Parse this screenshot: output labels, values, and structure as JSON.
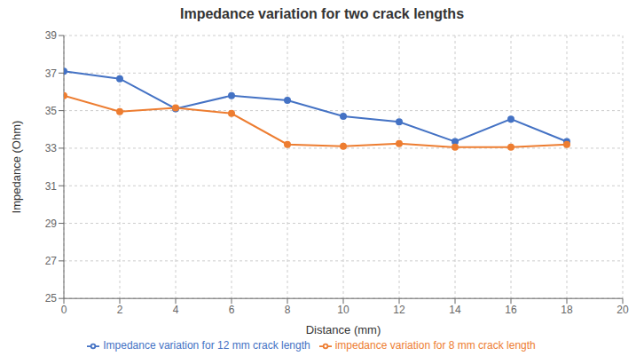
{
  "chart_data": {
    "type": "line",
    "title": "Impedance variation for two crack lengths",
    "xlabel": "Distance (mm)",
    "ylabel": "Impedance (Ohm)",
    "x": [
      0,
      2,
      4,
      6,
      8,
      10,
      12,
      14,
      16,
      18
    ],
    "series": [
      {
        "name": "Impedance variation for 12 mm crack length",
        "color": "#4472c4",
        "marker": "circle",
        "values": [
          37.1,
          36.7,
          35.1,
          35.8,
          35.55,
          34.7,
          34.4,
          33.35,
          34.55,
          33.35
        ]
      },
      {
        "name": "impedance variation for 8 mm crack length",
        "color": "#ed7d31",
        "marker": "circle",
        "values": [
          35.8,
          34.95,
          35.15,
          34.85,
          33.2,
          33.1,
          33.25,
          33.05,
          33.05,
          33.2
        ]
      }
    ],
    "xlim": [
      0,
      20
    ],
    "xticks": [
      0,
      2,
      4,
      6,
      8,
      10,
      12,
      14,
      16,
      18,
      20
    ],
    "ylim": [
      25,
      39
    ],
    "yticks": [
      25,
      27,
      29,
      31,
      33,
      35,
      37,
      39
    ],
    "grid": true,
    "legend": "bottom"
  }
}
